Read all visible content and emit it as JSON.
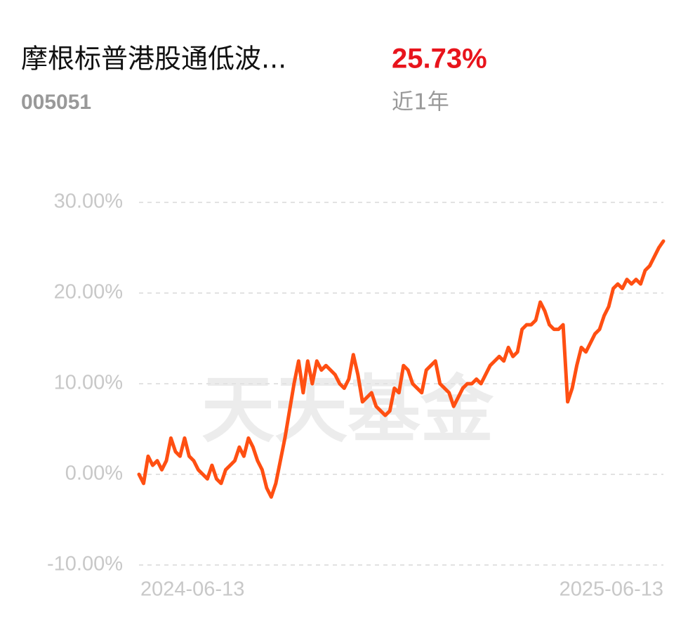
{
  "header": {
    "title": "摩根标普港股通低波...",
    "code": "005051",
    "return": "25.73%",
    "period": "近1年"
  },
  "watermark": "天天基金",
  "chart_data": {
    "type": "line",
    "color": "#ff4f12",
    "grid": true,
    "ylim": [
      -10,
      30
    ],
    "yticks": [
      {
        "value": -10,
        "label": "-10.00%"
      },
      {
        "value": 0,
        "label": "0.00%"
      },
      {
        "value": 10,
        "label": "10.00%"
      },
      {
        "value": 20,
        "label": "20.00%"
      },
      {
        "value": 30,
        "label": "30.00%"
      }
    ],
    "categories": [
      "2024-06-13",
      null,
      null,
      null,
      null,
      null,
      null,
      null,
      null,
      null,
      null,
      null,
      null,
      null,
      null,
      null,
      null,
      null,
      null,
      null,
      null,
      null,
      null,
      null,
      null,
      null,
      null,
      null,
      null,
      null,
      null,
      null,
      null,
      null,
      null,
      null,
      null,
      null,
      null,
      null,
      null,
      null,
      null,
      null,
      null,
      null,
      null,
      null,
      null,
      null,
      null,
      null,
      null,
      null,
      null,
      null,
      null,
      null,
      null,
      null,
      null,
      null,
      null,
      null,
      null,
      null,
      null,
      null,
      null,
      null,
      null,
      null,
      null,
      null,
      null,
      null,
      null,
      null,
      null,
      null,
      null,
      null,
      null,
      null,
      null,
      null,
      null,
      null,
      null,
      null,
      null,
      null,
      null,
      null,
      null,
      null,
      null,
      null,
      null,
      null,
      null,
      null,
      null,
      null,
      null,
      null,
      null,
      null,
      null,
      null,
      null,
      null,
      null,
      null,
      null,
      "2025-06-13"
    ],
    "values": [
      0,
      -1,
      2,
      1,
      1.5,
      0.5,
      1.5,
      4,
      2.5,
      2,
      4,
      2,
      1.5,
      0.5,
      0,
      -0.5,
      1,
      -0.5,
      -1,
      0.5,
      1,
      1.5,
      3,
      2,
      4,
      3,
      1.5,
      0.5,
      -1.5,
      -2.5,
      -1,
      1.5,
      4,
      7,
      10,
      12.5,
      9,
      12.5,
      10,
      12.5,
      11.5,
      12,
      11.5,
      11,
      10,
      9.5,
      10.5,
      13.2,
      11,
      8,
      8.5,
      9,
      7.5,
      7,
      6.5,
      7,
      9.5,
      9,
      12,
      11.5,
      10,
      9.5,
      9,
      11.5,
      12,
      12.5,
      10,
      9.5,
      9,
      7.5,
      8.5,
      9.5,
      10,
      10,
      10.5,
      10,
      11,
      12,
      12.5,
      13,
      12.5,
      14,
      13,
      13.5,
      16,
      16.5,
      16.5,
      17,
      19,
      18,
      16.5,
      16,
      16,
      16.5,
      8,
      9.5,
      12,
      14,
      13.5,
      14.5,
      15.5,
      16,
      17.5,
      18.5,
      20.5,
      21,
      20.5,
      21.5,
      21,
      21.5,
      21,
      22.5,
      23,
      24,
      25,
      25.73
    ]
  }
}
